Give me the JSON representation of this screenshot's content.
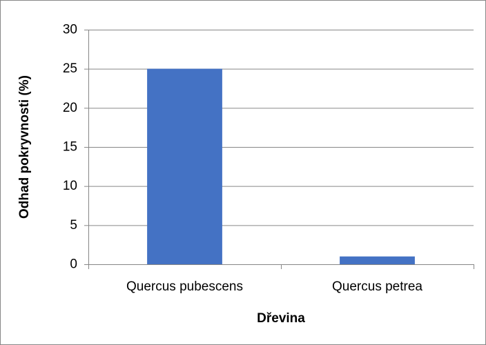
{
  "chart_data": {
    "type": "bar",
    "x_label": "Dřevina",
    "y_label": "Odhad pokryvnosti (%)",
    "categories": [
      "Quercus pubescens",
      "Quercus petrea"
    ],
    "values": [
      25,
      1
    ],
    "color": "#4472c4",
    "ylim": [
      0,
      30
    ],
    "yticks": [
      0,
      5,
      10,
      15,
      20,
      25,
      30
    ],
    "grid": true
  }
}
